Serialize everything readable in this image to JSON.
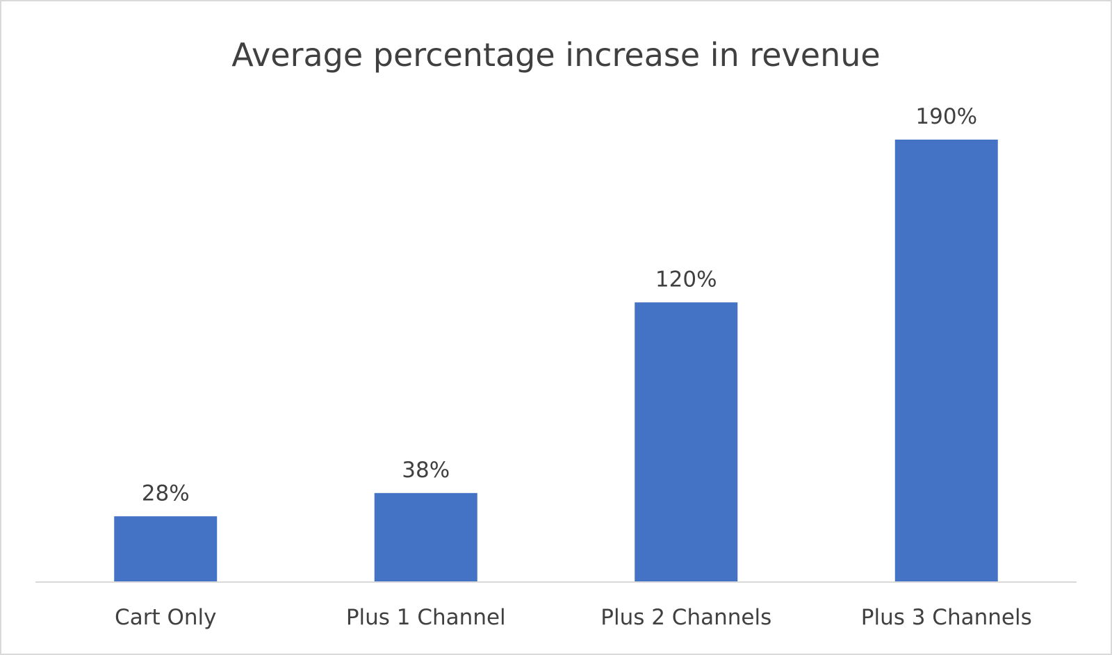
{
  "chart_data": {
    "type": "bar",
    "title": "Average percentage increase in revenue",
    "categories": [
      "Cart Only",
      "Plus 1 Channel",
      "Plus 2 Channels",
      "Plus 3 Channels"
    ],
    "values": [
      28,
      38,
      120,
      190
    ],
    "data_labels": [
      "28%",
      "38%",
      "120%",
      "190%"
    ],
    "xlabel": "",
    "ylabel": "",
    "ylim": [
      0,
      200
    ],
    "grid": false,
    "legend": "none",
    "colors": {
      "bar": "#4472C4",
      "axis": "#D9D9D9",
      "text": "#404040"
    }
  }
}
